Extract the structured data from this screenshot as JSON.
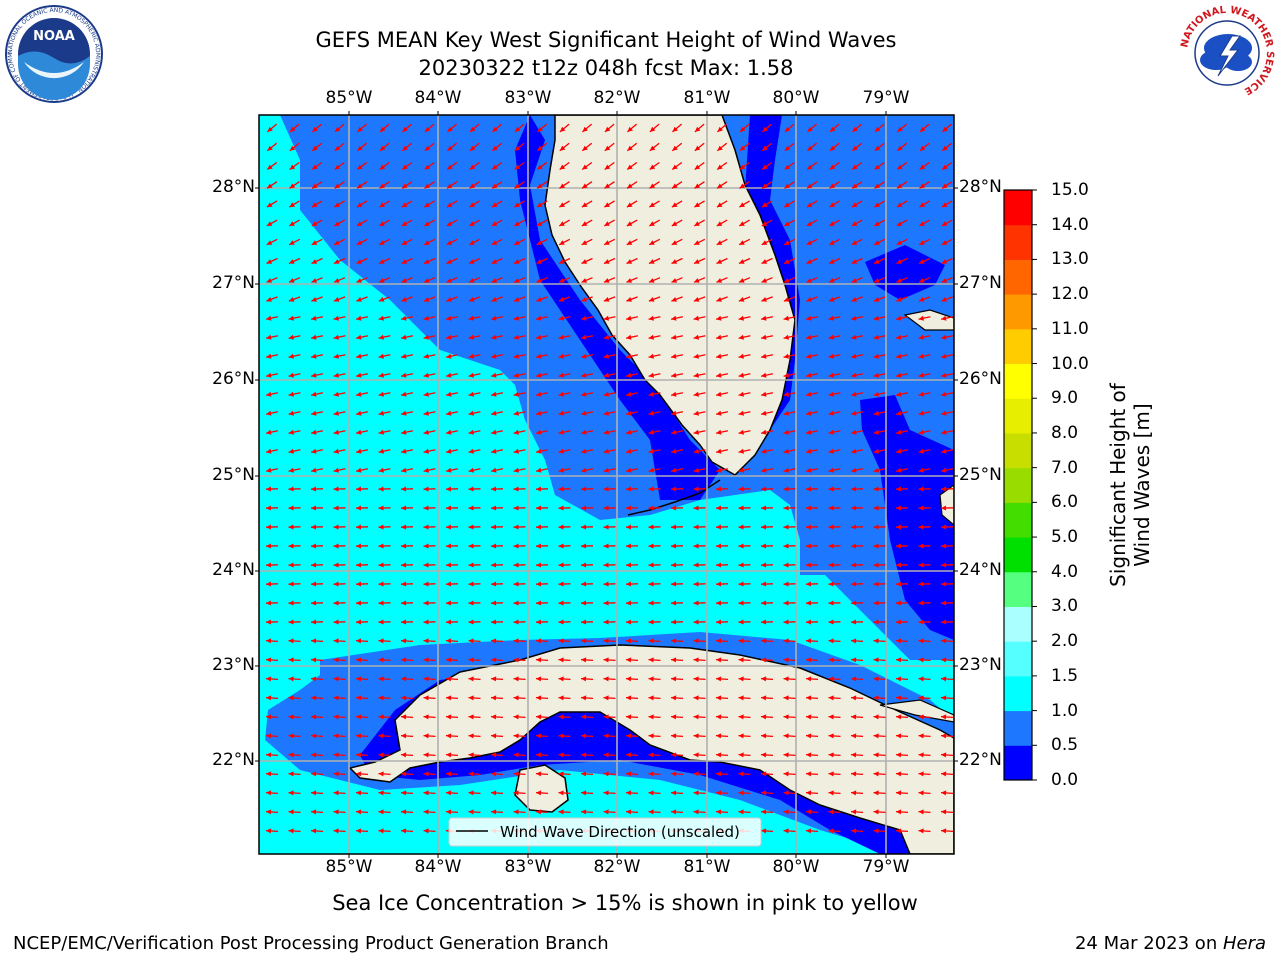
{
  "header": {
    "title_line1": "GEFS MEAN Key West Significant Height of Wind Waves",
    "title_line2": "20230322 t12z 048h fcst   Max: 1.58",
    "noaa_logo_text": "NOAA",
    "noaa_ring_text": "NATIONAL OCEANIC AND ATMOSPHERIC ADMINISTRATION · U.S. DEPARTMENT OF COMMERCE",
    "nws_ring_text": "NATIONAL WEATHER SERVICE"
  },
  "map": {
    "lon_labels": [
      "85°W",
      "84°W",
      "83°W",
      "82°W",
      "81°W",
      "80°W",
      "79°W"
    ],
    "lat_labels": [
      "28°N",
      "27°N",
      "26°N",
      "25°N",
      "24°N",
      "23°N",
      "22°N"
    ],
    "legend_label": "Wind Wave Direction (unscaled)",
    "grid": true,
    "colors": {
      "land": "#efeedf",
      "coast": "#000000",
      "arrow": "#ff0000",
      "grid": "#b0b0b0"
    }
  },
  "colorbar": {
    "title": "Significant Height of Wind Waves [m]",
    "ticks": [
      "0.0",
      "0.5",
      "1.0",
      "1.5",
      "2.0",
      "3.0",
      "4.0",
      "5.0",
      "6.0",
      "7.0",
      "8.0",
      "9.0",
      "10.0",
      "11.0",
      "12.0",
      "13.0",
      "14.0",
      "15.0"
    ],
    "colors": [
      "#0000ff",
      "#1e78ff",
      "#00ffff",
      "#55ffff",
      "#aaffff",
      "#55ff80",
      "#00e000",
      "#44dd00",
      "#99dd00",
      "#c8dd00",
      "#e8ee00",
      "#ffff00",
      "#ffcc00",
      "#ff9900",
      "#ff6600",
      "#ff3300",
      "#ff0000"
    ]
  },
  "footer": {
    "ice_note": "Sea Ice Concentration > 15% is shown in pink to yellow",
    "credit": "NCEP/EMC/Verification Post Processing Product Generation Branch",
    "date": "24 Mar 2023 on ",
    "host": "Hera"
  }
}
